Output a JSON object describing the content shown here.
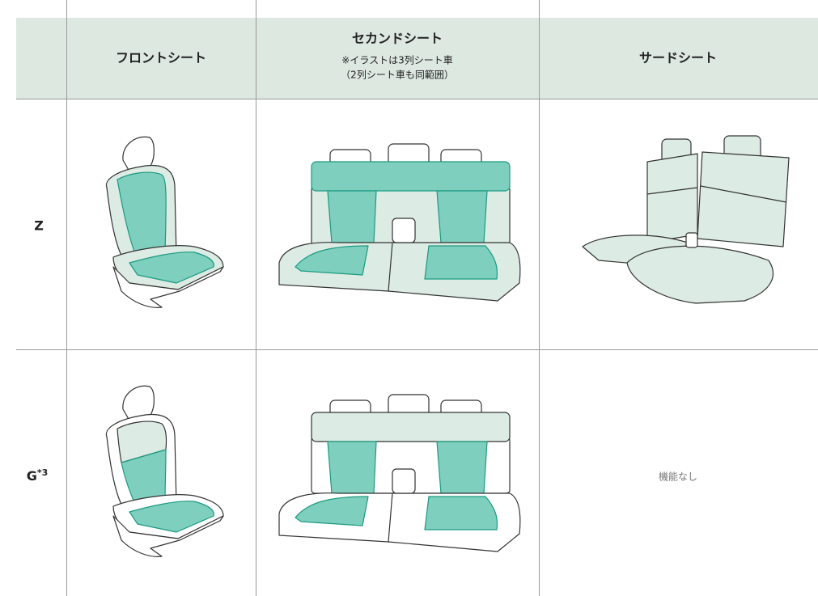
{
  "header": {
    "front": "フロントシート",
    "second": "セカンドシート",
    "second_notes": [
      "※イラストは3列シート車",
      "（2列シート車も同範囲）"
    ],
    "third": "サードシート"
  },
  "rows": [
    {
      "label": "Z"
    },
    {
      "label": "G",
      "footnote": "*3",
      "third_seat": "機能なし"
    }
  ]
}
